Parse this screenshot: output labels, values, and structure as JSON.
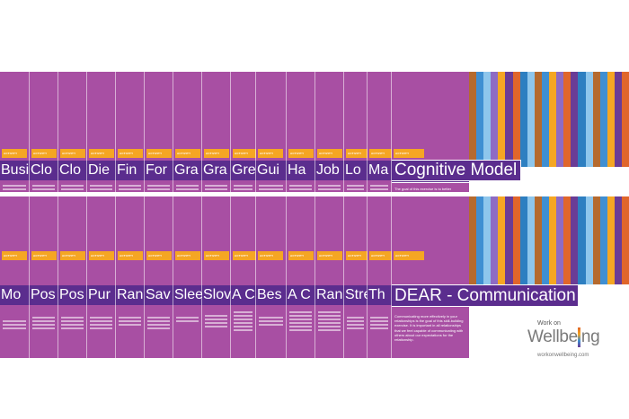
{
  "badge_label": "ACTIVITY",
  "colors": {
    "card": "#a84fa3",
    "band": "#5b2d8e",
    "badge": "#f5a623",
    "stripes": [
      "#f5a623",
      "#e0662b",
      "#b56a2e",
      "#3f8fd2",
      "#8ec6ec",
      "#8e6bc4",
      "#6a3c96",
      "#2d7fc1"
    ]
  },
  "top_row": {
    "cards": [
      {
        "title": "Busi"
      },
      {
        "title": "Clo"
      },
      {
        "title": "Clo"
      },
      {
        "title": "Die"
      },
      {
        "title": "Fin"
      },
      {
        "title": "For"
      },
      {
        "title": "Gra"
      },
      {
        "title": "Gra"
      },
      {
        "title": "Gre"
      },
      {
        "title": "Gui"
      },
      {
        "title": "Ha"
      },
      {
        "title": "Job"
      },
      {
        "title": "Lo"
      },
      {
        "title": "Ma"
      }
    ],
    "featured": {
      "title": "Cognitive Model",
      "desc": "The goal of this exercise is to better"
    }
  },
  "bottom_row": {
    "cards": [
      {
        "title": "Mo"
      },
      {
        "title": "Pos"
      },
      {
        "title": "Pos"
      },
      {
        "title": "Pur"
      },
      {
        "title": "Ran"
      },
      {
        "title": "Sav"
      },
      {
        "title": "Slee"
      },
      {
        "title": "Slov"
      },
      {
        "title": "A C"
      },
      {
        "title": "Bes"
      },
      {
        "title": "A C"
      },
      {
        "title": "Ran"
      },
      {
        "title": "Stre"
      },
      {
        "title": "Th"
      }
    ],
    "featured": {
      "title": "DEAR - Communication",
      "desc": "Communicating more effectively in your relationships is the goal of this skill-building exercise. It is important in all relationships that we feel capable of communicating with others about our expectations for the relationship."
    }
  },
  "logo": {
    "top": "Work on",
    "main": "Wellbeing",
    "url": "workonwellbeing.com"
  }
}
